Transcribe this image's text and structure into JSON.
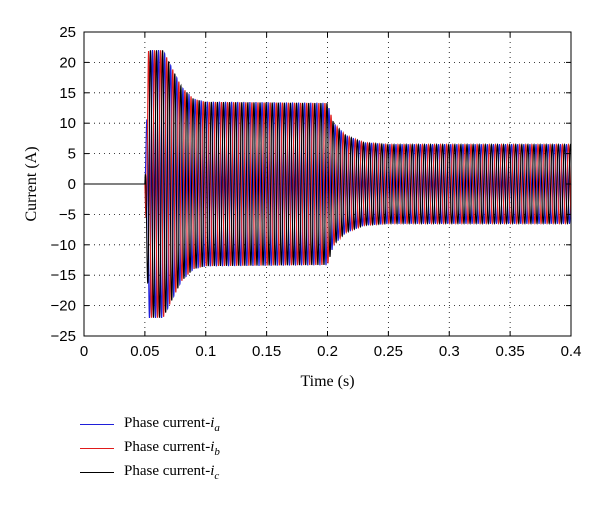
{
  "chart_data": {
    "type": "line",
    "xlabel": "Time (s)",
    "ylabel": "Current (A)",
    "xlim": [
      0,
      0.4
    ],
    "ylim": [
      -25,
      25
    ],
    "xticks": [
      0,
      0.05,
      0.1,
      0.15,
      0.2,
      0.25,
      0.3,
      0.35,
      0.4
    ],
    "xtick_labels": [
      "0",
      "0.05",
      "0.1",
      "0.15",
      "0.2",
      "0.25",
      "0.3",
      "0.35",
      "0.4"
    ],
    "yticks": [
      -25,
      -20,
      -15,
      -10,
      -5,
      0,
      5,
      10,
      15,
      20,
      25
    ],
    "ytick_labels": [
      "−25",
      "−20",
      "−15",
      "−10",
      "−5",
      "0",
      "5",
      "10",
      "15",
      "20",
      "25"
    ],
    "grid": true,
    "grid_style": "dotted",
    "legend_position": "below-plot",
    "series": [
      {
        "name": "Phase current-",
        "sub": "a",
        "var": "i",
        "color": "#1f1fd9",
        "phase_deg": 0
      },
      {
        "name": "Phase current-",
        "sub": "b",
        "var": "i",
        "color": "#e01a1a",
        "phase_deg": -120
      },
      {
        "name": "Phase current-",
        "sub": "c",
        "var": "i",
        "color": "#000000",
        "phase_deg": 120
      }
    ],
    "envelope": [
      {
        "t": 0.0,
        "amp": 0
      },
      {
        "t": 0.05,
        "amp": 0
      },
      {
        "t": 0.053,
        "amp": 22
      },
      {
        "t": 0.065,
        "amp": 22
      },
      {
        "t": 0.08,
        "amp": 16
      },
      {
        "t": 0.09,
        "amp": 14
      },
      {
        "t": 0.1,
        "amp": 13.5
      },
      {
        "t": 0.2,
        "amp": 13.3
      },
      {
        "t": 0.205,
        "amp": 10
      },
      {
        "t": 0.215,
        "amp": 8
      },
      {
        "t": 0.23,
        "amp": 6.8
      },
      {
        "t": 0.25,
        "amp": 6.5
      },
      {
        "t": 0.4,
        "amp": 6.5
      }
    ],
    "frequency_hz": 200
  }
}
